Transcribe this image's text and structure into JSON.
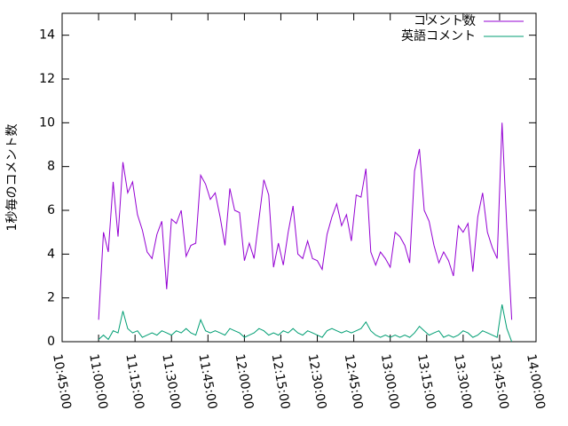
{
  "chart_data": {
    "type": "line",
    "ylabel": "1秒毎のコメント数",
    "x": [
      "11:00:00",
      "11:02:00",
      "11:04:00",
      "11:06:00",
      "11:08:00",
      "11:10:00",
      "11:12:00",
      "11:14:00",
      "11:16:00",
      "11:18:00",
      "11:20:00",
      "11:22:00",
      "11:24:00",
      "11:26:00",
      "11:28:00",
      "11:30:00",
      "11:32:00",
      "11:34:00",
      "11:36:00",
      "11:38:00",
      "11:40:00",
      "11:42:00",
      "11:44:00",
      "11:46:00",
      "11:48:00",
      "11:50:00",
      "11:52:00",
      "11:54:00",
      "11:56:00",
      "11:58:00",
      "12:00:00",
      "12:02:00",
      "12:04:00",
      "12:06:00",
      "12:08:00",
      "12:10:00",
      "12:12:00",
      "12:14:00",
      "12:16:00",
      "12:18:00",
      "12:20:00",
      "12:22:00",
      "12:24:00",
      "12:26:00",
      "12:28:00",
      "12:30:00",
      "12:32:00",
      "12:34:00",
      "12:36:00",
      "12:38:00",
      "12:40:00",
      "12:42:00",
      "12:44:00",
      "12:46:00",
      "12:48:00",
      "12:50:00",
      "12:52:00",
      "12:54:00",
      "12:56:00",
      "12:58:00",
      "13:00:00",
      "13:02:00",
      "13:04:00",
      "13:06:00",
      "13:08:00",
      "13:10:00",
      "13:12:00",
      "13:14:00",
      "13:16:00",
      "13:18:00",
      "13:20:00",
      "13:22:00",
      "13:24:00",
      "13:26:00",
      "13:28:00",
      "13:30:00",
      "13:32:00",
      "13:34:00",
      "13:36:00",
      "13:38:00",
      "13:40:00",
      "13:42:00",
      "13:44:00",
      "13:46:00",
      "13:48:00",
      "13:50:00"
    ],
    "series": [
      {
        "name": "コメント数",
        "color": "#9400d3",
        "values": [
          1.0,
          5.0,
          4.1,
          7.3,
          4.8,
          8.2,
          6.8,
          7.3,
          5.8,
          5.1,
          4.1,
          3.8,
          4.9,
          5.5,
          2.4,
          5.6,
          5.4,
          6.0,
          3.9,
          4.4,
          4.5,
          7.6,
          7.2,
          6.5,
          6.8,
          5.7,
          4.4,
          7.0,
          6.0,
          5.9,
          3.7,
          4.5,
          3.8,
          5.6,
          7.4,
          6.7,
          3.4,
          4.5,
          3.5,
          5.0,
          6.2,
          4.0,
          3.8,
          4.6,
          3.8,
          3.7,
          3.3,
          4.9,
          5.7,
          6.3,
          5.3,
          5.8,
          4.6,
          6.7,
          6.6,
          7.9,
          4.1,
          3.5,
          4.1,
          3.8,
          3.4,
          5.0,
          4.8,
          4.4,
          3.6,
          7.8,
          8.8,
          6.0,
          5.5,
          4.4,
          3.6,
          4.1,
          3.7,
          3.0,
          5.3,
          5.0,
          5.4,
          3.2,
          5.7,
          6.8,
          5.0,
          4.3,
          3.8,
          10.0,
          5.2,
          1.0
        ]
      },
      {
        "name": "英語コメント",
        "color": "#009e73",
        "values": [
          0.1,
          0.3,
          0.1,
          0.5,
          0.4,
          1.4,
          0.6,
          0.4,
          0.5,
          0.2,
          0.3,
          0.4,
          0.3,
          0.5,
          0.4,
          0.3,
          0.5,
          0.4,
          0.6,
          0.4,
          0.3,
          1.0,
          0.5,
          0.4,
          0.5,
          0.4,
          0.3,
          0.6,
          0.5,
          0.4,
          0.2,
          0.3,
          0.4,
          0.6,
          0.5,
          0.3,
          0.4,
          0.3,
          0.5,
          0.4,
          0.6,
          0.4,
          0.3,
          0.5,
          0.4,
          0.3,
          0.2,
          0.5,
          0.6,
          0.5,
          0.4,
          0.5,
          0.4,
          0.5,
          0.6,
          0.9,
          0.5,
          0.3,
          0.2,
          0.3,
          0.2,
          0.3,
          0.2,
          0.3,
          0.2,
          0.4,
          0.7,
          0.5,
          0.3,
          0.4,
          0.5,
          0.2,
          0.3,
          0.2,
          0.3,
          0.5,
          0.4,
          0.2,
          0.3,
          0.5,
          0.4,
          0.3,
          0.2,
          1.7,
          0.6,
          0.0
        ]
      }
    ],
    "xlim": [
      "10:45:00",
      "14:00:00"
    ],
    "xticks": [
      "10:45:00",
      "11:00:00",
      "11:15:00",
      "11:30:00",
      "11:45:00",
      "12:00:00",
      "12:15:00",
      "12:30:00",
      "12:45:00",
      "13:00:00",
      "13:15:00",
      "13:30:00",
      "13:45:00",
      "14:00:00"
    ],
    "ylim": [
      0,
      15
    ],
    "yticks": [
      0,
      2,
      4,
      6,
      8,
      10,
      12,
      14
    ],
    "legend": "top-right"
  }
}
